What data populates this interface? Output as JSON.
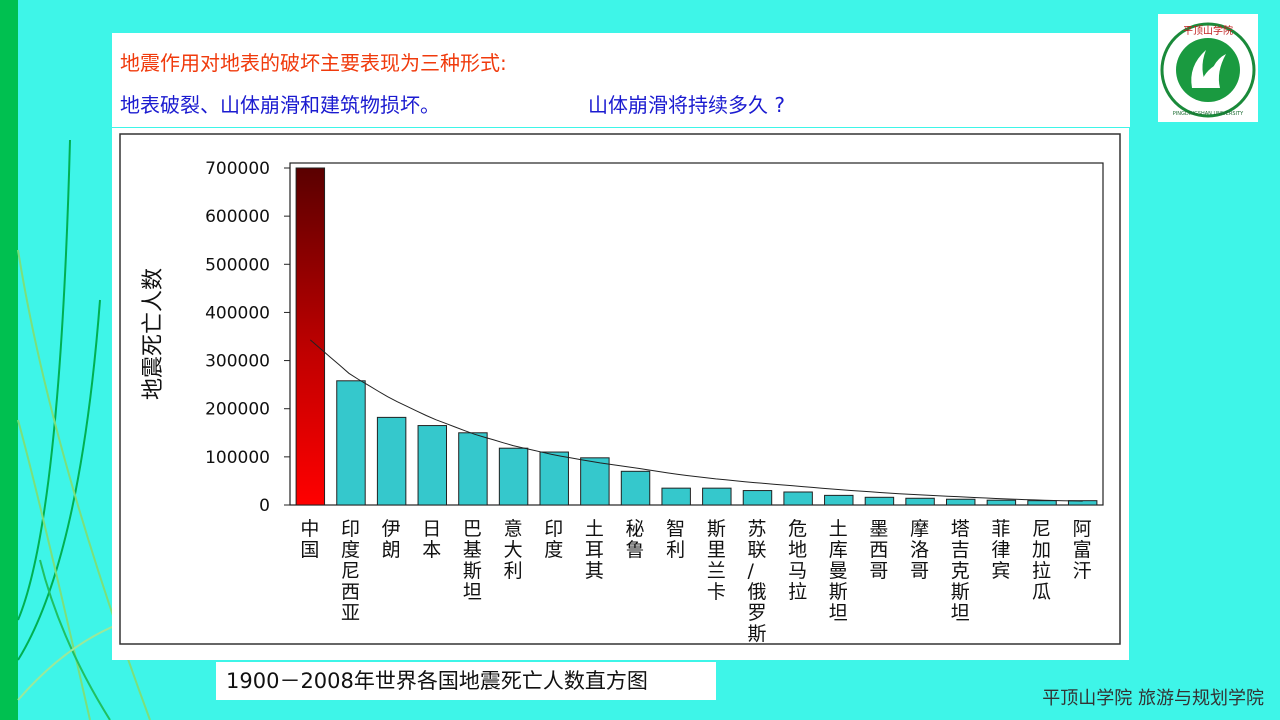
{
  "header": {
    "line1": "地震作用对地表的破坏主要表现为三种形式:",
    "line2": "地表破裂、山体崩滑和建筑物损坏。",
    "line2_question": "山体崩滑将持续多久 ?"
  },
  "logo": {
    "name": "平顶山学院",
    "english": "PINGDINGSHAN UNIVERSITY"
  },
  "caption": "1900－2008年世界各国地震死亡人数直方图",
  "footer": "平顶山学院  旅游与规划学院",
  "colors": {
    "background": "#3ef5e8",
    "bar": "#35c8cc",
    "bar_highlight": "#ff0000",
    "header_red": "#f03a0c",
    "header_blue": "#1b1bd0"
  },
  "chart_data": {
    "type": "bar",
    "title": "",
    "xlabel": "",
    "ylabel": "地震死亡人数",
    "ylim": [
      0,
      700000
    ],
    "yticks": [
      "0",
      "100000",
      "200000",
      "300000",
      "400000",
      "500000",
      "600000",
      "700000"
    ],
    "categories": [
      "中国",
      "印度尼西亚",
      "伊朗",
      "日本",
      "巴基斯坦",
      "意大利",
      "印度",
      "土耳其",
      "秘鲁",
      "智利",
      "斯里兰卡",
      "苏联/俄罗斯",
      "危地马拉",
      "土库曼斯坦",
      "墨西哥",
      "摩洛哥",
      "塔吉克斯坦",
      "菲律宾",
      "尼加拉瓜",
      "阿富汗"
    ],
    "values": [
      700000,
      258000,
      182000,
      165000,
      150000,
      118000,
      110000,
      98000,
      70000,
      35000,
      35000,
      30000,
      27000,
      20000,
      16000,
      14000,
      12000,
      10000,
      9000,
      9000
    ],
    "trendline": {
      "type": "power",
      "values": [
        343000,
        270000,
        220000,
        180000,
        148000,
        123000,
        104000,
        89000,
        77000,
        64000,
        54000,
        46000,
        39000,
        32000,
        26000,
        21000,
        17000,
        13000,
        10000,
        8000
      ]
    }
  }
}
